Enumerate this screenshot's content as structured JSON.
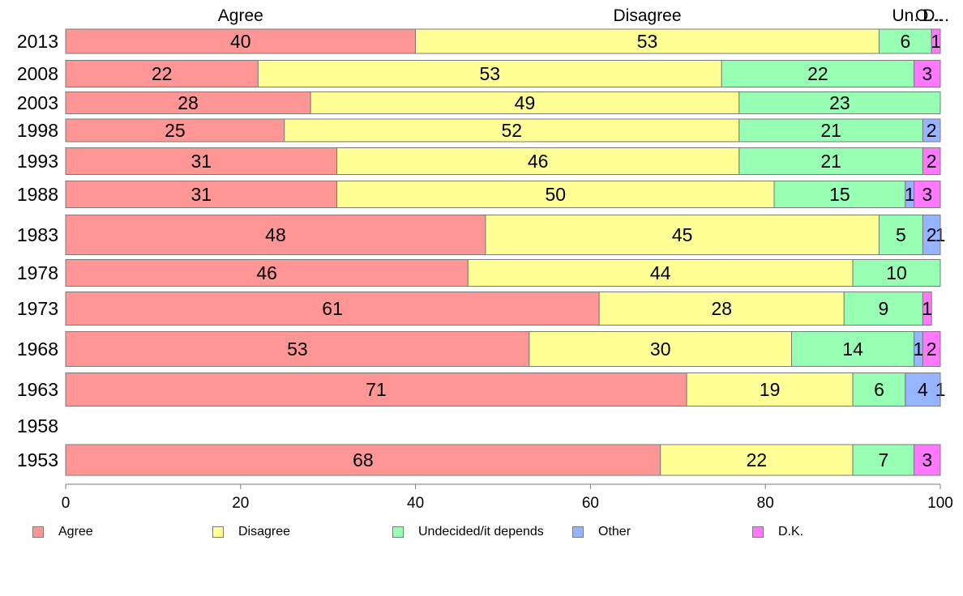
{
  "chart_data": {
    "type": "bar",
    "orientation": "horizontal",
    "stacked": true,
    "title": "",
    "xlabel": "",
    "ylabel": "",
    "xlim": [
      0,
      100
    ],
    "x_ticks": [
      0,
      20,
      40,
      60,
      80,
      100
    ],
    "categories": [
      "2013",
      "2008",
      "2003",
      "1998",
      "1993",
      "1988",
      "1983",
      "1978",
      "1973",
      "1968",
      "1963",
      "1958",
      "1953"
    ],
    "column_headers": [
      {
        "text": "Agree",
        "x": 20
      },
      {
        "text": "Disagree",
        "x": 66.5
      },
      {
        "text": "Un.",
        "x": 96
      },
      {
        "text": "O...",
        "x": 98.7
      },
      {
        "text": "D...",
        "x": 99.5
      }
    ],
    "series": [
      {
        "name": "Agree",
        "color": "#ff9696",
        "values": [
          40,
          22,
          28,
          25,
          31,
          31,
          48,
          46,
          61,
          53,
          71,
          null,
          68
        ]
      },
      {
        "name": "Disagree",
        "color": "#ffff96",
        "values": [
          53,
          53,
          49,
          52,
          46,
          50,
          45,
          44,
          28,
          30,
          19,
          null,
          22
        ]
      },
      {
        "name": "Undecided/it depends",
        "color": "#96ffb4",
        "values": [
          6,
          22,
          23,
          21,
          21,
          15,
          5,
          10,
          9,
          14,
          6,
          null,
          7
        ]
      },
      {
        "name": "Other",
        "color": "#96b4ff",
        "values": [
          0,
          0,
          0,
          2,
          0,
          1,
          2,
          0,
          0,
          1,
          4,
          null,
          0
        ]
      },
      {
        "name": "D.K.",
        "color": "#ff78ff",
        "values": [
          1,
          3,
          0,
          0,
          2,
          3,
          1,
          0,
          1,
          2,
          1,
          null,
          3
        ]
      }
    ],
    "legend_position": "bottom"
  }
}
